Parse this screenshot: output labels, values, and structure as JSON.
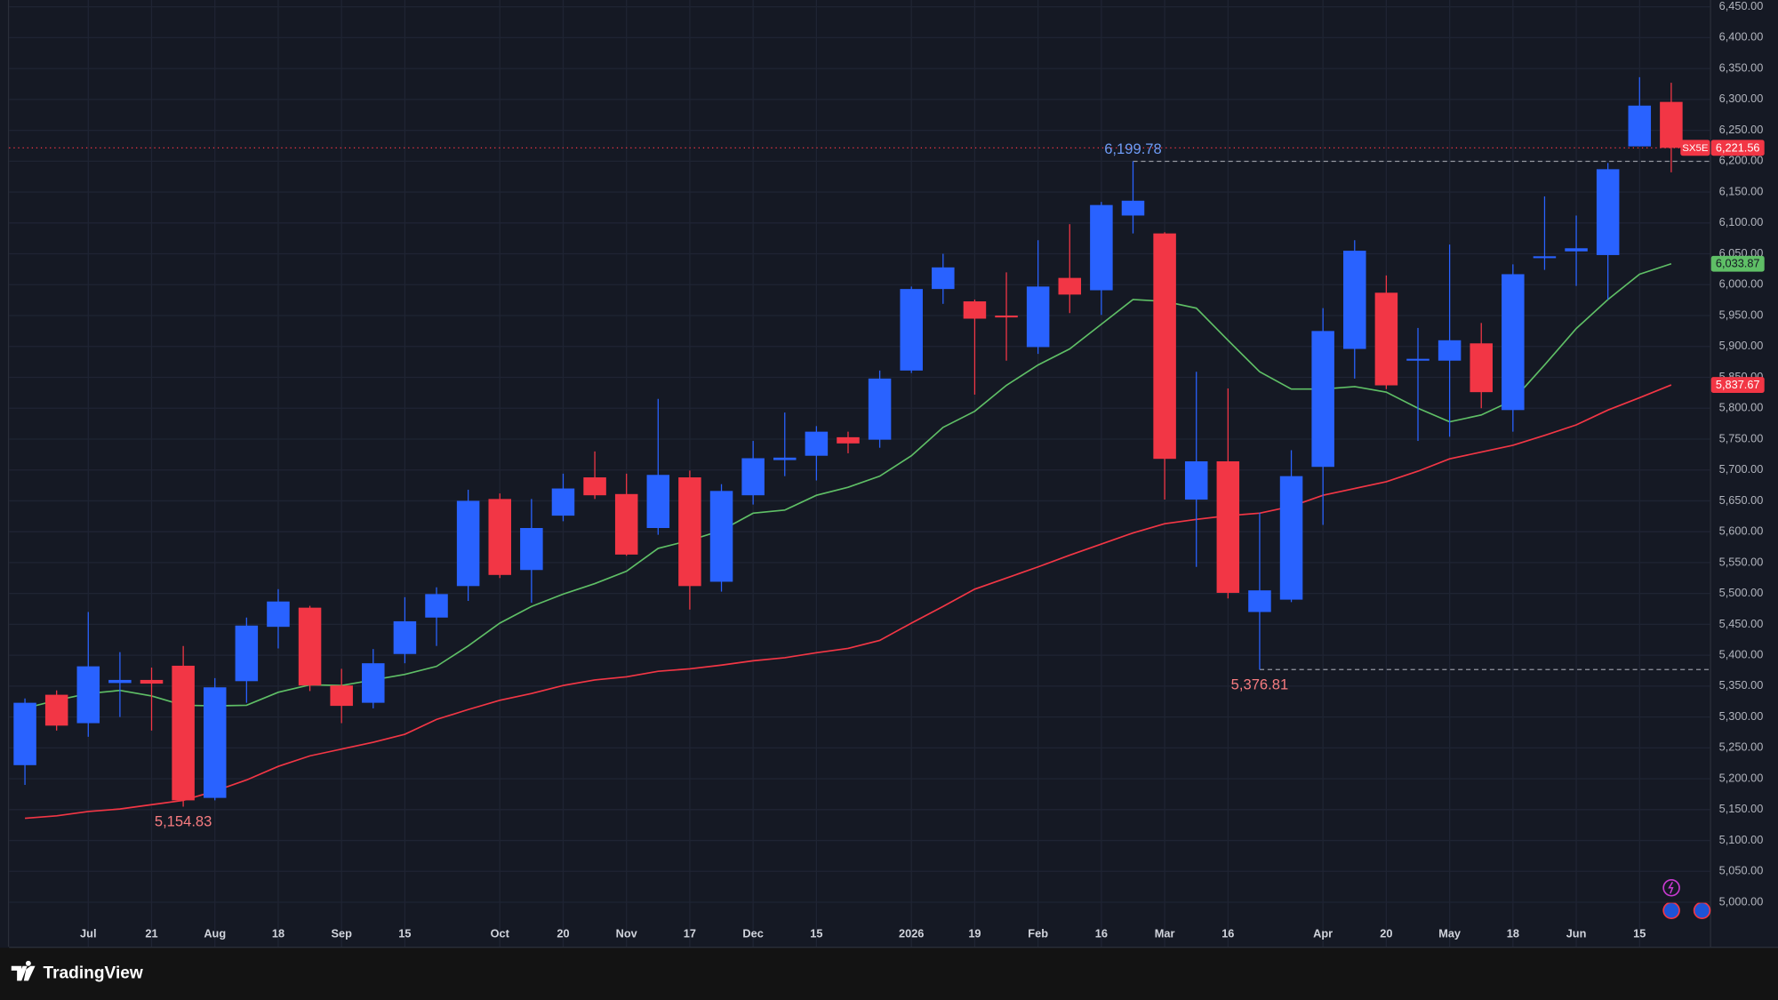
{
  "chart_data": {
    "type": "candlestick",
    "up_color": "#2962ff",
    "down_color": "#f23645",
    "categories": [
      null,
      null,
      "Jul",
      null,
      "21",
      null,
      "Aug",
      null,
      "18",
      null,
      "Sep",
      null,
      "15",
      null,
      null,
      "Oct",
      null,
      "20",
      null,
      "Nov",
      null,
      "17",
      null,
      "Dec",
      null,
      "15",
      null,
      null,
      "2026",
      null,
      "19",
      null,
      "Feb",
      null,
      "16",
      null,
      "Mar",
      null,
      "16",
      null,
      null,
      "Apr",
      null,
      "20",
      null,
      "May",
      null,
      "18",
      null,
      "Jun",
      null,
      "15",
      null
    ],
    "open": [
      5222,
      5336,
      5290,
      5355,
      5360,
      5383,
      5169,
      5358,
      5446,
      5477,
      5351,
      5323,
      5402,
      5461,
      5512,
      5653,
      5538,
      5626,
      5688,
      5661,
      5606,
      5688,
      5519,
      5659,
      5716,
      5723,
      5753,
      5749,
      5861,
      5993,
      5973,
      5950,
      5899,
      6011,
      5991,
      6112,
      6083,
      5652,
      5714,
      5470,
      5490,
      5705,
      5896,
      5987,
      5877,
      5877,
      5905,
      5797,
      6043,
      6054,
      6048,
      6224,
      6296
    ],
    "high": [
      5330,
      5343,
      5470,
      5405,
      5380,
      5415,
      5363,
      5461,
      5507,
      5480,
      5378,
      5410,
      5494,
      5510,
      5668,
      5662,
      5653,
      5694,
      5730,
      5694,
      5815,
      5699,
      5677,
      5747,
      5793,
      5771,
      5762,
      5861,
      5997,
      6050,
      5976,
      6020,
      6072,
      6098,
      6134,
      6199.78,
      6085,
      5859,
      5832,
      5631,
      5732,
      5962,
      6072,
      6015,
      5930,
      6065,
      5938,
      6033,
      6143,
      6112,
      6197,
      6336,
      6327
    ],
    "low": [
      5190,
      5278,
      5268,
      5300,
      5278,
      5154.83,
      5165,
      5323,
      5411,
      5342,
      5290,
      5314,
      5387,
      5415,
      5488,
      5525,
      5485,
      5617,
      5653,
      5561,
      5595,
      5474,
      5503,
      5644,
      5690,
      5683,
      5727,
      5736,
      5857,
      5969,
      5822,
      5877,
      5888,
      5954,
      5951,
      6083,
      5652,
      5543,
      5492,
      5376.81,
      5486,
      5611,
      5848,
      5831,
      5747,
      5754,
      5800,
      5762,
      6024,
      5998,
      5976,
      6224,
      6182
    ],
    "close": [
      5323,
      5286,
      5382,
      5360,
      5354,
      5165,
      5348,
      5448,
      5487,
      5351,
      5318,
      5387,
      5455,
      5499,
      5650,
      5530,
      5606,
      5670,
      5659,
      5563,
      5692,
      5512,
      5666,
      5719,
      5720,
      5762,
      5743,
      5848,
      5993,
      6028,
      5945,
      5947,
      5997,
      5984,
      6129,
      6136,
      5718,
      5714,
      5501,
      5505,
      5690,
      5925,
      6055,
      5837,
      5880,
      5910,
      5826,
      6017,
      6046,
      6059,
      6187,
      6290,
      6221.56
    ],
    "series": [
      {
        "color": "#5fbf66",
        "end_label": "6,033.87",
        "values": [
          5314,
          5327,
          5338,
          5343,
          5334,
          5319,
          5318,
          5319,
          5340,
          5352,
          5351,
          5360,
          5369,
          5382,
          5415,
          5452,
          5479,
          5499,
          5516,
          5536,
          5573,
          5586,
          5602,
          5630,
          5635,
          5659,
          5672,
          5690,
          5723,
          5769,
          5795,
          5837,
          5870,
          5896,
          5936,
          5976,
          5973,
          5962,
          5910,
          5859,
          5831,
          5831,
          5835,
          5826,
          5800,
          5778,
          5789,
          5813,
          5870,
          5929,
          5976,
          6017,
          6033.87
        ]
      },
      {
        "color": "#f23645",
        "end_label": "5,837.67",
        "values": [
          5136,
          5140,
          5147,
          5151,
          5158,
          5165,
          5180,
          5198,
          5220,
          5237,
          5248,
          5259,
          5272,
          5296,
          5312,
          5327,
          5338,
          5351,
          5360,
          5365,
          5374,
          5378,
          5384,
          5391,
          5396,
          5404,
          5411,
          5424,
          5452,
          5479,
          5507,
          5525,
          5543,
          5562,
          5580,
          5598,
          5613,
          5620,
          5626,
          5630,
          5641,
          5659,
          5670,
          5681,
          5698,
          5718,
          5729,
          5740,
          5756,
          5773,
          5797,
          5817,
          5837.67
        ]
      }
    ],
    "last_price": {
      "symbol": "SX5E",
      "value": 6221.56,
      "label": "6,221.56"
    },
    "annotations": [
      {
        "value": 6199.78,
        "label": "6,199.78",
        "color": "#6e9bf5",
        "dashed": true
      },
      {
        "value": 5154.83,
        "label": "5,154.83",
        "color": "#f77c80",
        "dashed": false
      },
      {
        "value": 5376.81,
        "label": "5,376.81",
        "color": "#f77c80",
        "dashed": true
      }
    ],
    "ylim": [
      4928,
      6461
    ],
    "yticks": [
      {
        "value": 5000,
        "label": "5,000.00"
      },
      {
        "value": 5050,
        "label": "5,050.00"
      },
      {
        "value": 5100,
        "label": "5,100.00"
      },
      {
        "value": 5150,
        "label": "5,150.00"
      },
      {
        "value": 5200,
        "label": "5,200.00"
      },
      {
        "value": 5250,
        "label": "5,250.00"
      },
      {
        "value": 5300,
        "label": "5,300.00"
      },
      {
        "value": 5350,
        "label": "5,350.00"
      },
      {
        "value": 5400,
        "label": "5,400.00"
      },
      {
        "value": 5450,
        "label": "5,450.00"
      },
      {
        "value": 5500,
        "label": "5,500.00"
      },
      {
        "value": 5550,
        "label": "5,550.00"
      },
      {
        "value": 5600,
        "label": "5,600.00"
      },
      {
        "value": 5650,
        "label": "5,650.00"
      },
      {
        "value": 5700,
        "label": "5,700.00"
      },
      {
        "value": 5750,
        "label": "5,750.00"
      },
      {
        "value": 5800,
        "label": "5,800.00"
      },
      {
        "value": 5850,
        "label": "5,850.00"
      },
      {
        "value": 5900,
        "label": "5,900.00"
      },
      {
        "value": 5950,
        "label": "5,950.00"
      },
      {
        "value": 6000,
        "label": "6,000.00"
      },
      {
        "value": 6050,
        "label": "6,050.00"
      },
      {
        "value": 6100,
        "label": "6,100.00"
      },
      {
        "value": 6150,
        "label": "6,150.00"
      },
      {
        "value": 6200,
        "label": "6,200.00"
      },
      {
        "value": 6250,
        "label": "6,250.00"
      },
      {
        "value": 6300,
        "label": "6,300.00"
      },
      {
        "value": 6350,
        "label": "6,350.00"
      },
      {
        "value": 6400,
        "label": "6,400.00"
      },
      {
        "value": 6450,
        "label": "6,450.00"
      }
    ],
    "grid": true,
    "branding": "TradingView"
  }
}
